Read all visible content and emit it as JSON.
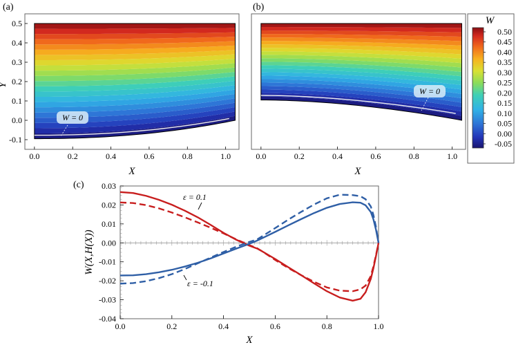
{
  "chart_data": [
    {
      "type": "heatmap",
      "panel_label": "(a)",
      "xlabel": "X",
      "ylabel": "Y",
      "xlim": [
        -0.05,
        1.07
      ],
      "ylim": [
        -0.15,
        0.55
      ],
      "xticks": [
        "0.0",
        "0.2",
        "0.4",
        "0.6",
        "0.8",
        "1.0"
      ],
      "yticks": [
        "-0.1",
        "0.0",
        "0.1",
        "0.2",
        "0.3",
        "0.4",
        "0.5"
      ],
      "domain": {
        "top": 0.5,
        "x_right": 1.05,
        "bottom_left": -0.095,
        "bottom_right": 0.0
      },
      "contour_label": "W = 0"
    },
    {
      "type": "heatmap",
      "panel_label": "(b)",
      "xlabel": "X",
      "ylabel": "",
      "xlim": [
        -0.05,
        1.07
      ],
      "ylim": [
        -0.15,
        0.55
      ],
      "xticks": [
        "0.0",
        "0.2",
        "0.4",
        "0.6",
        "0.8",
        "1.0"
      ],
      "yticks": [],
      "domain": {
        "top": 0.5,
        "x_right": 1.05,
        "bottom_left": 0.105,
        "bottom_right": 0.0
      },
      "contour_label": "W = 0"
    },
    {
      "type": "colorbar",
      "title": "W",
      "range": [
        -0.05,
        0.5
      ],
      "ticks": [
        "0.50",
        "0.45",
        "0.40",
        "0.35",
        "0.30",
        "0.25",
        "0.20",
        "0.15",
        "0.10",
        "0.05",
        "0.00",
        "-0.05"
      ]
    },
    {
      "type": "line",
      "panel_label": "(c)",
      "xlabel": "X",
      "ylabel": "W(X,H(X))",
      "xlim": [
        0,
        1
      ],
      "ylim": [
        -0.04,
        0.03
      ],
      "xticks": [
        "0.0",
        "0.2",
        "0.4",
        "0.6",
        "0.8",
        "1.0"
      ],
      "yticks": [
        "0.03",
        "0.02",
        "0.01",
        "0.00",
        "-0.01",
        "-0.02",
        "-0.03",
        "-0.04"
      ],
      "annotations": [
        "ε = 0.1",
        "ε = -0.1"
      ],
      "series": [
        {
          "color": "#c81e1e",
          "dash": "solid",
          "x": [
            0,
            0.05,
            0.1,
            0.15,
            0.2,
            0.25,
            0.3,
            0.35,
            0.4,
            0.45,
            0.5,
            0.53,
            0.55,
            0.6,
            0.65,
            0.7,
            0.75,
            0.8,
            0.85,
            0.9,
            0.93,
            0.95,
            0.97,
            0.98,
            0.99,
            1.0
          ],
          "y": [
            0.0268,
            0.0263,
            0.0248,
            0.0227,
            0.0201,
            0.017,
            0.0135,
            0.0095,
            0.0053,
            0.0016,
            -0.0015,
            -0.003,
            -0.0045,
            -0.0085,
            -0.0128,
            -0.017,
            -0.0213,
            -0.0255,
            -0.0288,
            -0.0305,
            -0.0295,
            -0.026,
            -0.019,
            -0.0135,
            -0.007,
            0.0
          ]
        },
        {
          "color": "#c81e1e",
          "dash": "dashed",
          "x": [
            0,
            0.05,
            0.1,
            0.15,
            0.2,
            0.25,
            0.3,
            0.35,
            0.4,
            0.45,
            0.5,
            0.53,
            0.55,
            0.6,
            0.65,
            0.7,
            0.75,
            0.8,
            0.85,
            0.9,
            0.93,
            0.95,
            0.97,
            0.98,
            0.99,
            1.0
          ],
          "y": [
            0.0213,
            0.021,
            0.0199,
            0.0182,
            0.016,
            0.0135,
            0.0108,
            0.008,
            0.005,
            0.0018,
            -0.0012,
            -0.0028,
            -0.0045,
            -0.009,
            -0.0132,
            -0.017,
            -0.0205,
            -0.0235,
            -0.0252,
            -0.0255,
            -0.0245,
            -0.0225,
            -0.0175,
            -0.0125,
            -0.0065,
            0.0
          ]
        },
        {
          "color": "#2f5fa6",
          "dash": "solid",
          "x": [
            0,
            0.05,
            0.1,
            0.15,
            0.2,
            0.25,
            0.3,
            0.35,
            0.4,
            0.45,
            0.5,
            0.53,
            0.55,
            0.6,
            0.65,
            0.7,
            0.75,
            0.8,
            0.85,
            0.9,
            0.93,
            0.95,
            0.97,
            0.98,
            0.99,
            1.0
          ],
          "y": [
            -0.0172,
            -0.0171,
            -0.0165,
            -0.0155,
            -0.0142,
            -0.0125,
            -0.0105,
            -0.0082,
            -0.0056,
            -0.003,
            -0.0005,
            0.0012,
            0.0025,
            0.0058,
            0.0092,
            0.0125,
            0.0157,
            0.0185,
            0.0205,
            0.0214,
            0.0212,
            0.0198,
            0.0163,
            0.0125,
            0.007,
            0.0
          ]
        },
        {
          "color": "#2f5fa6",
          "dash": "dashed",
          "x": [
            0,
            0.05,
            0.1,
            0.15,
            0.2,
            0.25,
            0.3,
            0.35,
            0.4,
            0.45,
            0.5,
            0.53,
            0.55,
            0.6,
            0.65,
            0.7,
            0.75,
            0.8,
            0.85,
            0.9,
            0.93,
            0.95,
            0.97,
            0.98,
            0.99,
            1.0
          ],
          "y": [
            -0.0215,
            -0.0212,
            -0.0202,
            -0.0186,
            -0.0165,
            -0.0138,
            -0.0108,
            -0.0078,
            -0.0048,
            -0.002,
            0.0005,
            0.0018,
            0.0035,
            0.0078,
            0.0122,
            0.0163,
            0.0202,
            0.0235,
            0.0254,
            0.0252,
            0.0246,
            0.023,
            0.0192,
            0.0148,
            0.0085,
            0.0
          ]
        }
      ]
    }
  ]
}
